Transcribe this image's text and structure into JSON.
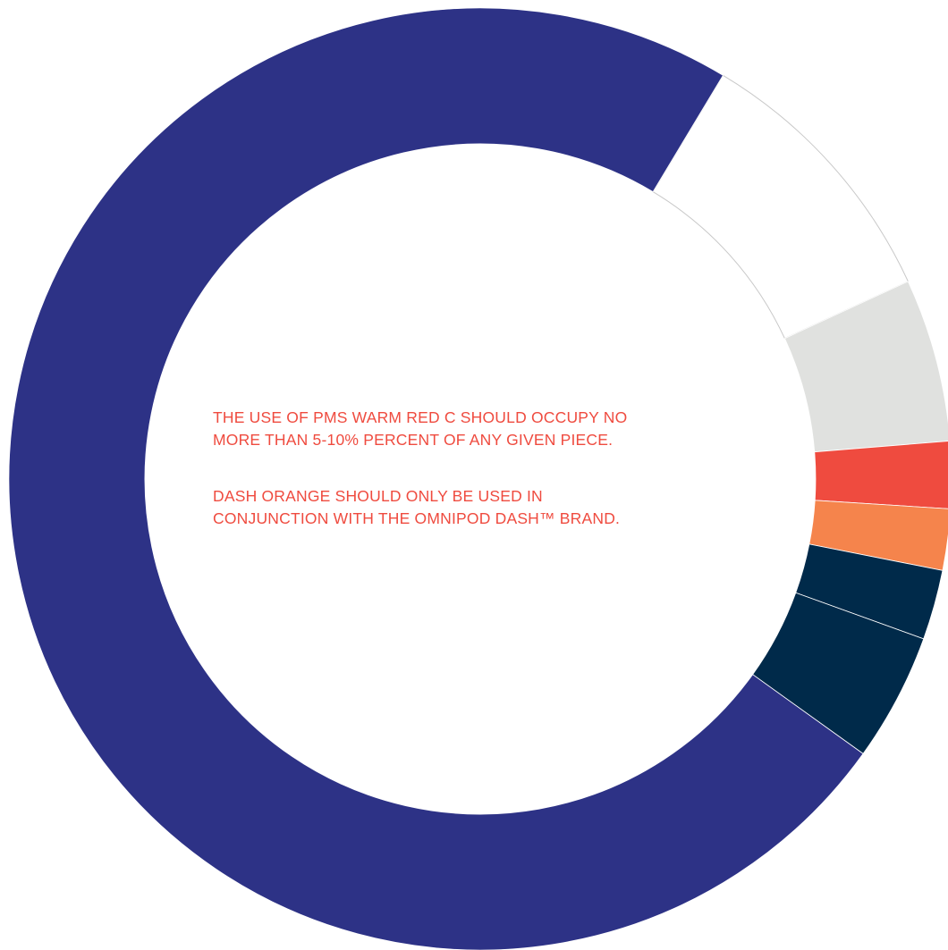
{
  "notes": {
    "warm_red_line1": "THE USE OF PMS WARM RED C SHOULD OCCUPY NO",
    "warm_red_line2": "MORE THAN 5-10% PERCENT OF ANY GIVEN PIECE.",
    "dash_orange_line1": "DASH ORANGE SHOULD ONLY BE USED IN",
    "dash_orange_line2": "CONJUNCTION WITH THE OMNIPOD DASH™ BRAND."
  },
  "chart_data": {
    "type": "pie",
    "donut": true,
    "start_angle_deg": -59,
    "title": "",
    "legend": "none",
    "slices": [
      {
        "value": 9.5,
        "color": "#ffffff",
        "outline": "#c8c8c8"
      },
      {
        "value": 5.6,
        "color": "#e0e1df"
      },
      {
        "value": 2.3,
        "color": "#ef4b3f"
      },
      {
        "value": 2.1,
        "color": "#f5844c"
      },
      {
        "value": 2.4,
        "color": "#002a4a"
      },
      {
        "value": 4.4,
        "color": "#002a4a"
      },
      {
        "value": 73.7,
        "color": "#2d3286"
      }
    ]
  }
}
